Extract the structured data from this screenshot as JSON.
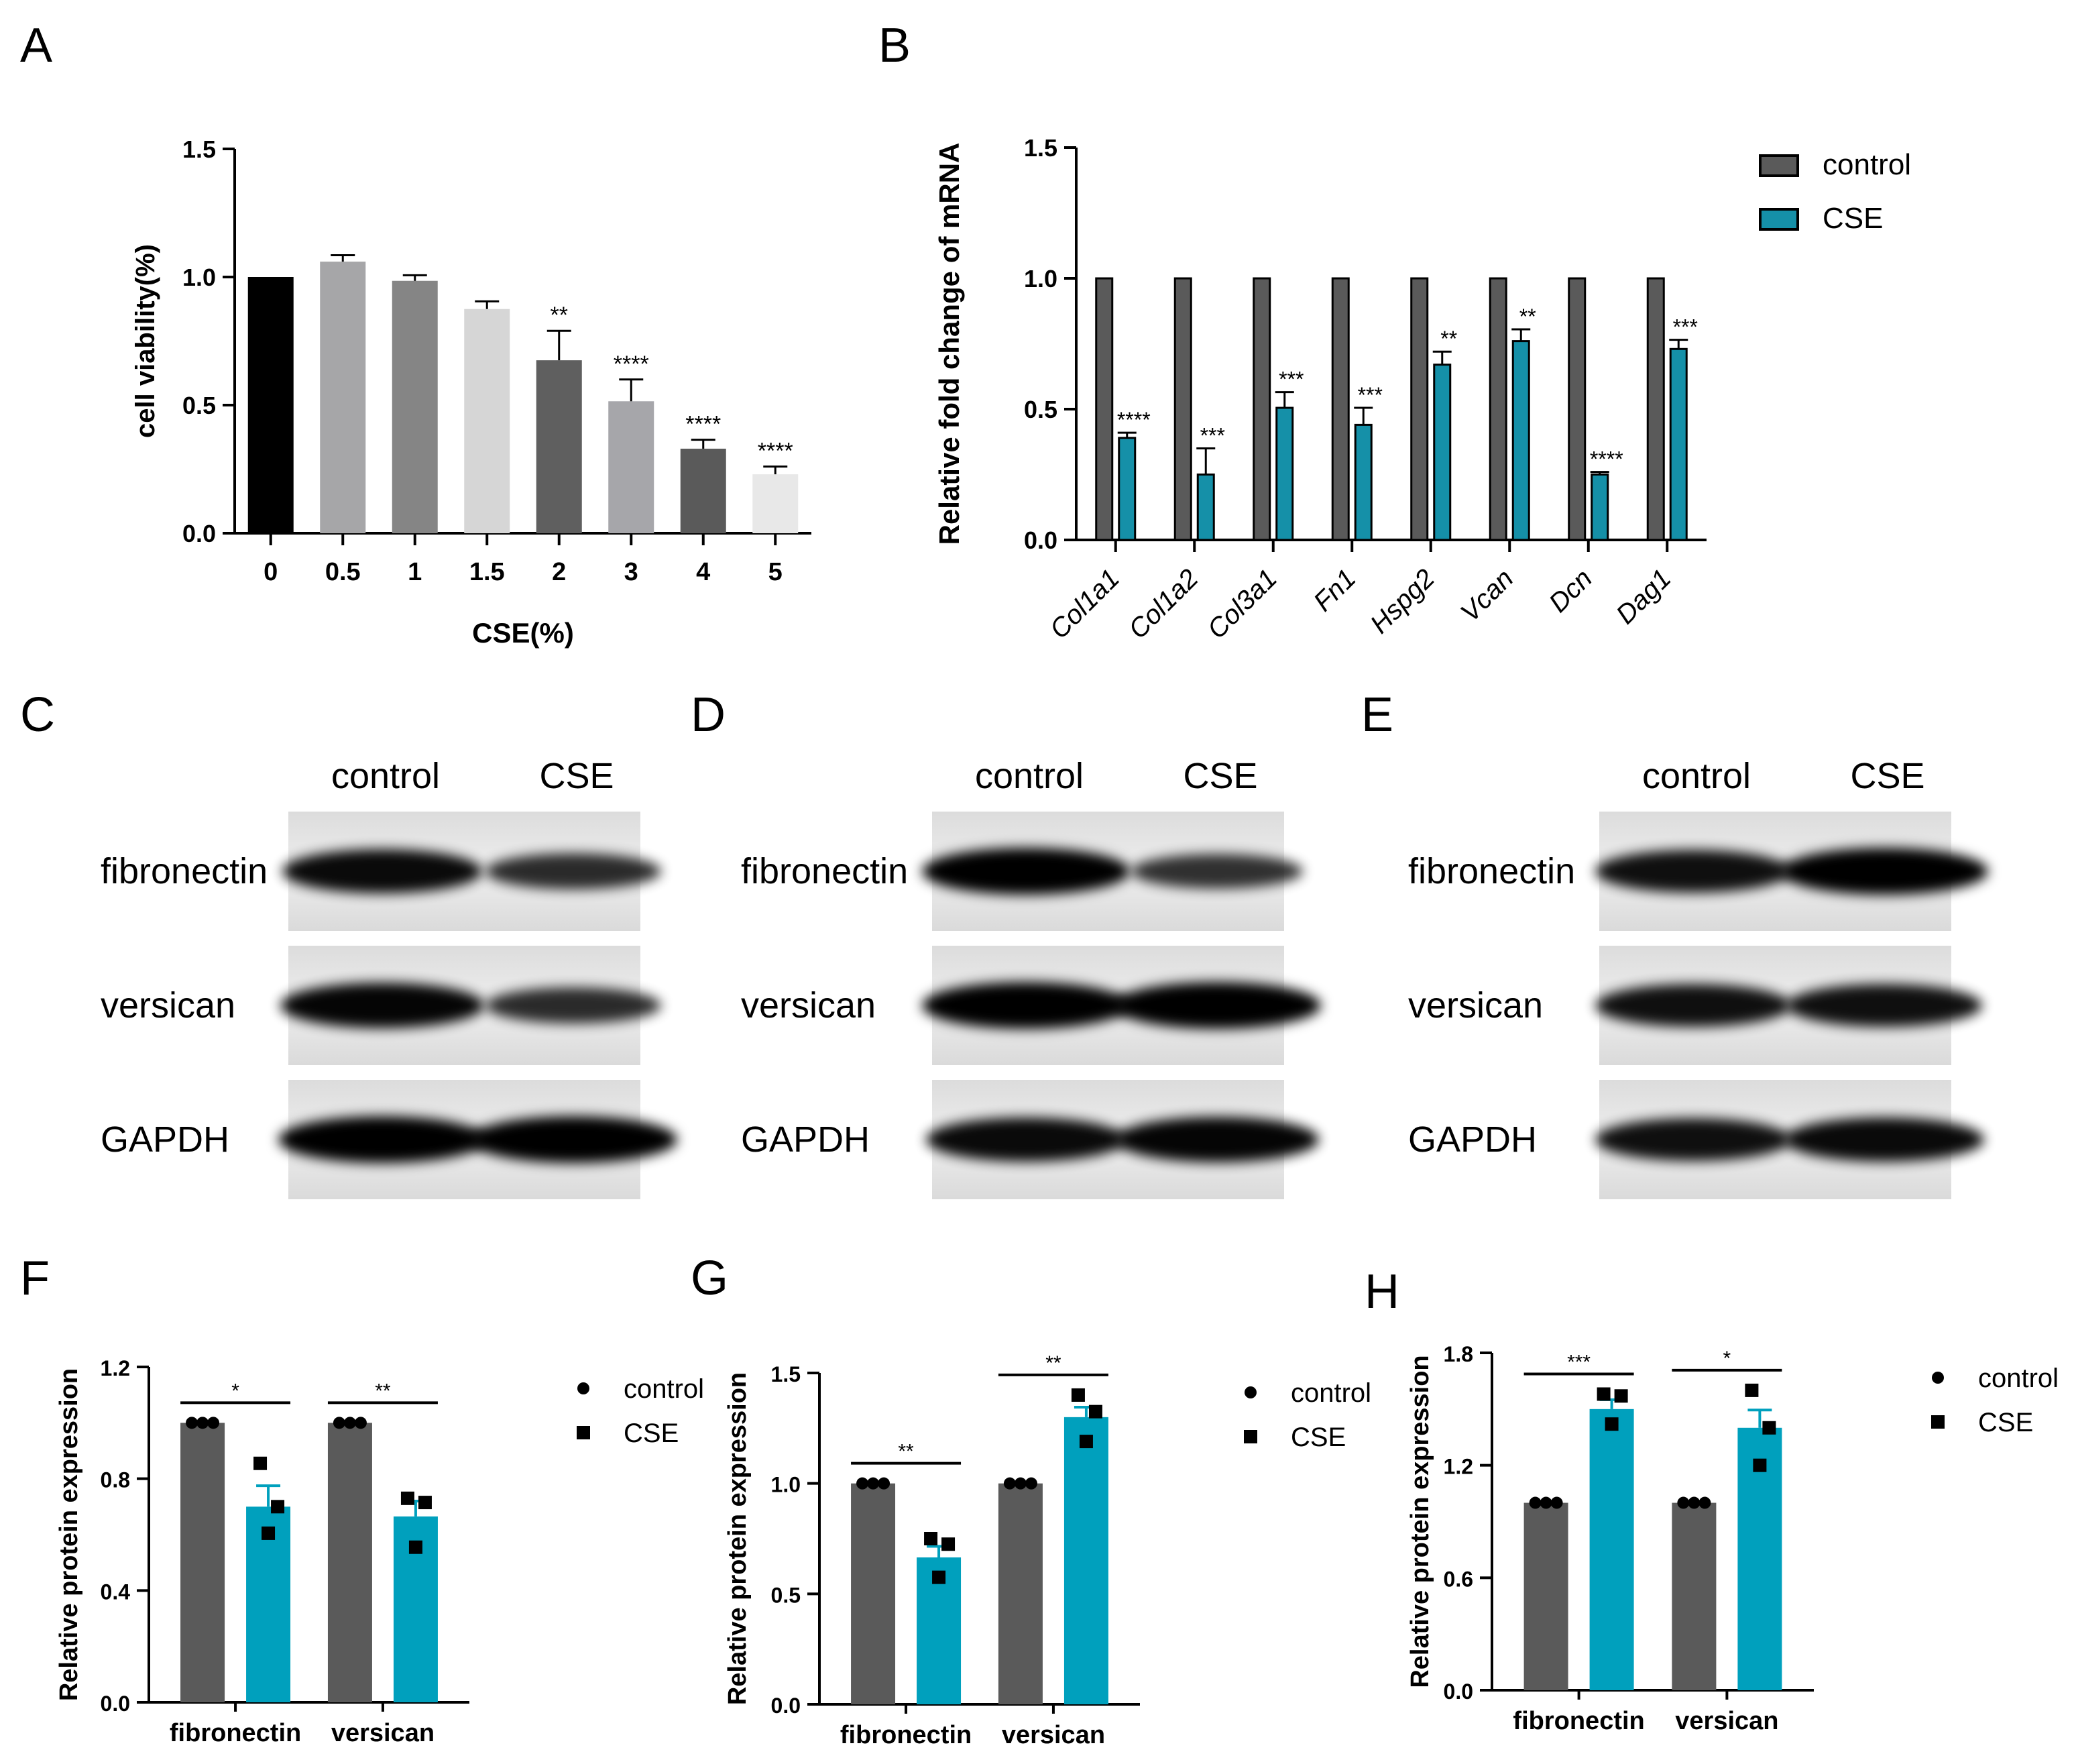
{
  "panel_letters": [
    "A",
    "B",
    "C",
    "D",
    "E",
    "F",
    "G",
    "H"
  ],
  "colors": {
    "A_bars": [
      "#000000",
      "#a6a6a8",
      "#858585",
      "#d6d6d6",
      "#5f5f5f",
      "#a6a6aa",
      "#5a5a5a",
      "#e8e8e8"
    ],
    "control": "#5a5a5a",
    "cse_dark": "#1590a8",
    "cse_light": "#00a0bd",
    "axis": "#000000"
  },
  "chart_data": [
    {
      "id": "A",
      "type": "bar",
      "ylabel": "cell viability(%)",
      "xlabel": "CSE(%)",
      "ylim": [
        0,
        1.5
      ],
      "yticks": [
        "0.0",
        "0.5",
        "1.0",
        "1.5"
      ],
      "categories": [
        "0",
        "0.5",
        "1",
        "1.5",
        "2",
        "3",
        "4",
        "5"
      ],
      "values": [
        1.0,
        1.06,
        0.985,
        0.875,
        0.675,
        0.515,
        0.33,
        0.23
      ],
      "errors": [
        0.0,
        0.025,
        0.022,
        0.03,
        0.115,
        0.085,
        0.035,
        0.03
      ],
      "significance": [
        "",
        "",
        "",
        "",
        "**",
        "****",
        "****",
        "****"
      ]
    },
    {
      "id": "B",
      "type": "bar",
      "ylabel": "Relative fold change of mRNA",
      "ylim": [
        0,
        1.5
      ],
      "yticks": [
        "0.0",
        "0.5",
        "1.0",
        "1.5"
      ],
      "categories": [
        "Col1a1",
        "Col1a2",
        "Col3a1",
        "Fn1",
        "Hspg2",
        "Vcan",
        "Dcn",
        "Dag1"
      ],
      "series": [
        {
          "name": "control",
          "values": [
            1.0,
            1.0,
            1.0,
            1.0,
            1.0,
            1.0,
            1.0,
            1.0
          ],
          "errors": [
            0,
            0,
            0,
            0,
            0,
            0,
            0,
            0
          ]
        },
        {
          "name": "CSE",
          "values": [
            0.39,
            0.25,
            0.505,
            0.44,
            0.67,
            0.76,
            0.25,
            0.73
          ],
          "errors": [
            0.02,
            0.1,
            0.06,
            0.065,
            0.05,
            0.045,
            0.01,
            0.035
          ]
        }
      ],
      "significance": [
        "****",
        "***",
        "***",
        "***",
        "**",
        "**",
        "****",
        "***"
      ],
      "legend": [
        "control",
        "CSE"
      ],
      "legend_position": "top-right"
    },
    {
      "id": "F",
      "type": "bar",
      "ylabel": "Relative protein expression",
      "ylim": [
        0,
        1.2
      ],
      "yticks": [
        "0.0",
        "0.4",
        "0.8",
        "1.2"
      ],
      "categories": [
        "fibronectin",
        "versican"
      ],
      "series": [
        {
          "name": "control",
          "values": [
            1.0,
            1.0
          ],
          "errors": [
            0,
            0
          ],
          "points": [
            [
              1.0,
              1.0,
              1.0
            ],
            [
              1.0,
              1.0,
              1.0
            ]
          ]
        },
        {
          "name": "CSE",
          "values": [
            0.7,
            0.665
          ],
          "errors": [
            0.075,
            0.055
          ],
          "points": [
            [
              0.855,
              0.7,
              0.605
            ],
            [
              0.73,
              0.715,
              0.555
            ]
          ]
        }
      ],
      "significance": [
        "*",
        "**"
      ],
      "legend": [
        "control",
        "CSE"
      ],
      "legend_position": "right"
    },
    {
      "id": "G",
      "type": "bar",
      "ylabel": "Relative protein expression",
      "ylim": [
        0,
        1.5
      ],
      "yticks": [
        "0.0",
        "0.5",
        "1.0",
        "1.5"
      ],
      "categories": [
        "fibronectin",
        "versican"
      ],
      "series": [
        {
          "name": "control",
          "values": [
            1.0,
            1.0
          ],
          "errors": [
            0,
            0
          ],
          "points": [
            [
              1.0,
              1.0,
              1.0
            ],
            [
              1.0,
              1.0,
              1.0
            ]
          ]
        },
        {
          "name": "CSE",
          "values": [
            0.665,
            1.3
          ],
          "errors": [
            0.05,
            0.045
          ],
          "points": [
            [
              0.75,
              0.725,
              0.575
            ],
            [
              1.4,
              1.325,
              1.19
            ]
          ]
        }
      ],
      "significance": [
        "**",
        "**"
      ],
      "legend": [
        "control",
        "CSE"
      ],
      "legend_position": "right"
    },
    {
      "id": "H",
      "type": "bar",
      "ylabel": "Relative protein expression",
      "ylim": [
        0,
        1.8
      ],
      "yticks": [
        "0.0",
        "0.6",
        "1.2",
        "1.8"
      ],
      "categories": [
        "fibronectin",
        "versican"
      ],
      "series": [
        {
          "name": "control",
          "values": [
            1.0,
            1.0
          ],
          "errors": [
            0,
            0
          ],
          "points": [
            [
              1.0,
              1.0,
              1.0
            ],
            [
              1.0,
              1.0,
              1.0
            ]
          ]
        },
        {
          "name": "CSE",
          "values": [
            1.5,
            1.4
          ],
          "errors": [
            0.05,
            0.095
          ],
          "points": [
            [
              1.58,
              1.57,
              1.42
            ],
            [
              1.6,
              1.4,
              1.2
            ]
          ]
        }
      ],
      "significance": [
        "***",
        "*"
      ],
      "legend": [
        "control",
        "CSE"
      ],
      "legend_position": "right"
    }
  ],
  "blots": [
    {
      "id": "C",
      "lanes": [
        "control",
        "CSE"
      ],
      "rows": [
        "fibronectin",
        "versican",
        "GAPDH"
      ],
      "band_intensity": [
        [
          0.9,
          0.6
        ],
        [
          0.95,
          0.6
        ],
        [
          1.0,
          1.0
        ]
      ]
    },
    {
      "id": "D",
      "lanes": [
        "control",
        "CSE"
      ],
      "rows": [
        "fibronectin",
        "versican",
        "GAPDH"
      ],
      "band_intensity": [
        [
          1.0,
          0.55
        ],
        [
          1.0,
          1.0
        ],
        [
          0.9,
          0.95
        ]
      ]
    },
    {
      "id": "E",
      "lanes": [
        "control",
        "CSE"
      ],
      "rows": [
        "fibronectin",
        "versican",
        "GAPDH"
      ],
      "band_intensity": [
        [
          0.85,
          1.0
        ],
        [
          0.85,
          0.85
        ],
        [
          0.85,
          0.9
        ]
      ]
    }
  ]
}
